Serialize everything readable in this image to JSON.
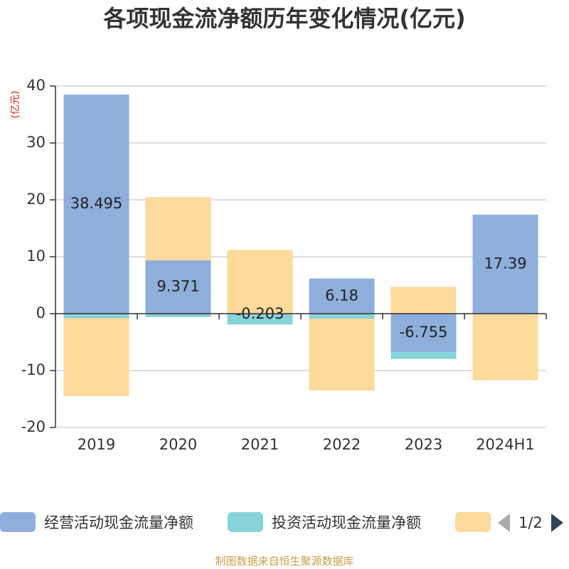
{
  "title": "各项现金流净额历年变化情况(亿元)",
  "footer": "制图数据来自恒生聚源数据库",
  "legend": {
    "items": [
      {
        "label": "经营活动现金流量净额",
        "color": "#8eaedb"
      },
      {
        "label": "投资活动现金流量净额",
        "color": "#86d3d9"
      },
      {
        "label": "",
        "color": "#fdd99a"
      }
    ],
    "page_text": "1/2"
  },
  "chart_data": {
    "type": "bar",
    "stacked": true,
    "categories": [
      "2019",
      "2020",
      "2021",
      "2022",
      "2023",
      "2024H1"
    ],
    "ylabel": "(亿元)",
    "ylim": [
      -20,
      40
    ],
    "yticks": [
      -20,
      -10,
      0,
      10,
      20,
      30,
      40
    ],
    "grid": true,
    "series": [
      {
        "name": "经营活动现金流量净额",
        "color": "#8eaedb",
        "values": [
          38.495,
          9.371,
          -0.203,
          6.18,
          -6.755,
          17.39
        ],
        "labels": [
          "38.495",
          "9.371",
          "-0.203",
          "6.18",
          "-6.755",
          "17.39"
        ]
      },
      {
        "name": "投资活动现金流量净额",
        "color": "#86d3d9",
        "values": [
          -0.8,
          -0.6,
          -1.7,
          -0.9,
          -1.2,
          -0.1
        ]
      },
      {
        "name": "",
        "color": "#fdd99a",
        "values": [
          -13.7,
          11.1,
          11.2,
          -12.6,
          4.7,
          -11.6
        ]
      }
    ]
  }
}
